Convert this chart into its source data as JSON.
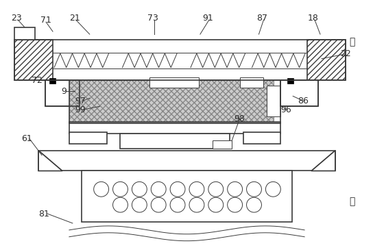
{
  "fig_width": 5.44,
  "fig_height": 3.65,
  "dpi": 100,
  "bg_color": "#ffffff",
  "line_color": "#3a3a3a",
  "lw_main": 1.2,
  "lw_thin": 0.7,
  "spring_color": "#3a3a3a",
  "hatch_diag": "////",
  "hatch_cross": "xxxx",
  "label_fontsize": 9,
  "label_color": "#2a2a2a"
}
